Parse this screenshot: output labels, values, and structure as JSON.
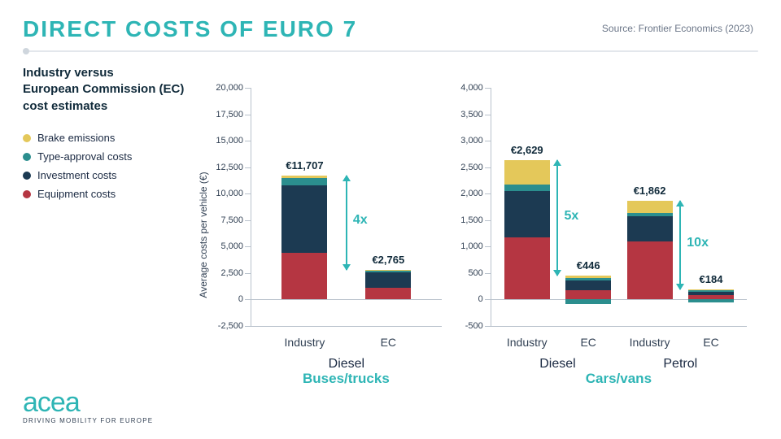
{
  "title": "DIRECT COSTS OF EURO 7",
  "title_color": "#2eb5b5",
  "source": "Source: Frontier Economics (2023)",
  "subtitle": "Industry versus\nEuropean Commission (EC)\ncost estimates",
  "y_axis_label": "Average costs per vehicle (€)",
  "colors": {
    "brake": "#e4c85a",
    "type_approval": "#2b8e8e",
    "investment": "#1c3a52",
    "equipment": "#b53642",
    "accent": "#2eb5b5",
    "text_dark": "#102a3a"
  },
  "legend": [
    {
      "label": "Brake emissions",
      "color": "#e4c85a"
    },
    {
      "label": "Type-approval costs",
      "color": "#2b8e8e"
    },
    {
      "label": "Investment costs",
      "color": "#1c3a52"
    },
    {
      "label": "Equipment costs",
      "color": "#b53642"
    }
  ],
  "chart_left": {
    "title": "Buses/trucks",
    "ylim": [
      -2500,
      20000
    ],
    "ytick_step": 2500,
    "groups": [
      {
        "name": "Diesel",
        "bars": [
          {
            "cat": "Industry",
            "total_label": "€11,707",
            "stack": {
              "equipment": 4400,
              "investment": 6400,
              "type_approval": 700,
              "brake": 207
            }
          },
          {
            "cat": "EC",
            "total_label": "€2,765",
            "stack": {
              "equipment": 1100,
              "investment": 1500,
              "type_approval": 100,
              "brake": 65
            }
          }
        ],
        "multiplier": "4x"
      }
    ]
  },
  "chart_right": {
    "title": "Cars/vans",
    "ylim": [
      -500,
      4000
    ],
    "ytick_step": 500,
    "groups": [
      {
        "name": "Diesel",
        "bars": [
          {
            "cat": "Industry",
            "total_label": "€2,629",
            "stack": {
              "equipment": 1180,
              "investment": 870,
              "type_approval": 120,
              "brake": 459
            }
          },
          {
            "cat": "EC",
            "total_label": "€446",
            "negative": -90,
            "stack": {
              "equipment": 180,
              "investment": 180,
              "type_approval": 40,
              "brake": 46
            }
          }
        ],
        "multiplier": "5x"
      },
      {
        "name": "Petrol",
        "bars": [
          {
            "cat": "Industry",
            "total_label": "€1,862",
            "stack": {
              "equipment": 1100,
              "investment": 480,
              "type_approval": 50,
              "brake": 232
            }
          },
          {
            "cat": "EC",
            "total_label": "€184",
            "negative": -60,
            "stack": {
              "equipment": 80,
              "investment": 70,
              "type_approval": 20,
              "brake": 14
            }
          }
        ],
        "multiplier": "10x"
      }
    ]
  },
  "logo": {
    "text": "acea",
    "tagline": "DRIVING MOBILITY FOR EUROPE"
  }
}
